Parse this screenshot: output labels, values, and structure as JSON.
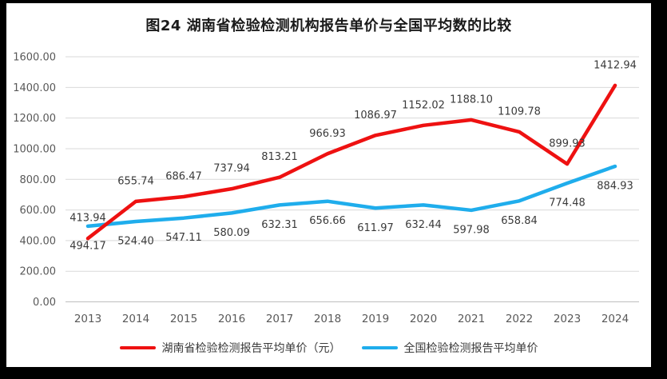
{
  "title": "图24 湖南省检验检测机构报告单价与全国平均数的比较",
  "colors": {
    "frame": "#000000",
    "background": "#ffffff",
    "gridline": "#d9d9d9",
    "axis_line": "#bfbfbf",
    "tick_text": "#595959",
    "data_label_text": "#3a3a3a",
    "title_text": "#1a1a1a",
    "series_red": "#ee1111",
    "series_blue": "#1fadec"
  },
  "chart_data": {
    "type": "line",
    "x": [
      "2013",
      "2014",
      "2015",
      "2016",
      "2017",
      "2018",
      "2019",
      "2020",
      "2021",
      "2022",
      "2023",
      "2024"
    ],
    "series": [
      {
        "name": "全国检验检测报告平均单价",
        "color": "#1fadec",
        "label_position": "below",
        "values": [
          494.17,
          524.4,
          547.11,
          580.09,
          632.31,
          656.66,
          611.97,
          632.44,
          597.98,
          658.84,
          774.48,
          884.93
        ],
        "labels": [
          "494.17",
          "524.40",
          "547.11",
          "580.09",
          "632.31",
          "656.66",
          "611.97",
          "632.44",
          "597.98",
          "658.84",
          "774.48",
          "884.93"
        ]
      },
      {
        "name": "湖南省检验检测报告平均单价（元）",
        "color": "#ee1111",
        "label_position": "above",
        "values": [
          413.94,
          655.74,
          686.47,
          737.94,
          813.21,
          966.93,
          1086.97,
          1152.02,
          1188.1,
          1109.78,
          899.93,
          1412.94
        ],
        "labels": [
          "413.94",
          "655.74",
          "686.47",
          "737.94",
          "813.21",
          "966.93",
          "1086.97",
          "1152.02",
          "1188.10",
          "1109.78",
          "899.93",
          "1412.94"
        ]
      }
    ],
    "legend_order": [
      1,
      0
    ],
    "legend_position": "bottom",
    "grid": true,
    "ylim": [
      0,
      1600
    ],
    "y_axis_ticks": [
      {
        "v": 0,
        "label": "0.00"
      },
      {
        "v": 200,
        "label": "200.00"
      },
      {
        "v": 400,
        "label": "400.00"
      },
      {
        "v": 600,
        "label": "600.00"
      },
      {
        "v": 800,
        "label": "800.00"
      },
      {
        "v": 1000,
        "label": "1000.00"
      },
      {
        "v": 1200,
        "label": "1200.00"
      },
      {
        "v": 1400,
        "label": "1400.00"
      },
      {
        "v": 1600,
        "label": "1600.00"
      }
    ]
  },
  "legend": {
    "items": [
      {
        "label": "湖南省检验检测报告平均单价（元）",
        "swatch": "red-line"
      },
      {
        "label": "全国检验检测报告平均单价",
        "swatch": "blue-line"
      }
    ]
  }
}
